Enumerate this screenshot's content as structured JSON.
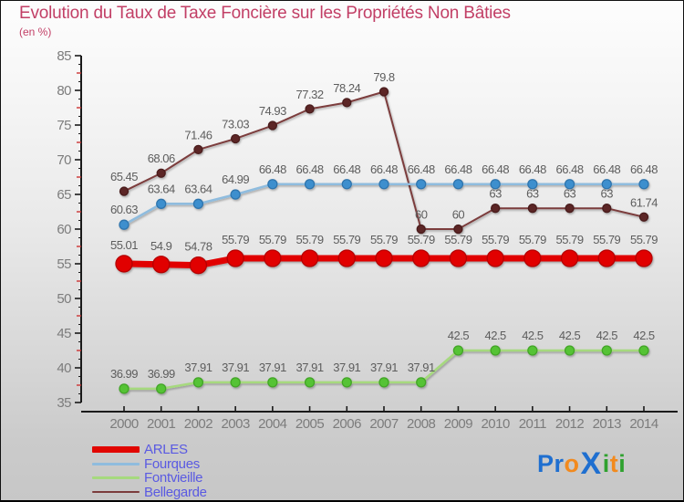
{
  "page": {
    "title": "Evolution du Taux de Taxe Foncière sur les Propriétés Non Bâties",
    "subtitle": "(en %)",
    "title_color": "#c23f66"
  },
  "logo": {
    "text": "Proxiti",
    "letters": [
      {
        "ch": "P",
        "color": "#1f6fd0"
      },
      {
        "ch": "r",
        "color": "#1f6fd0"
      },
      {
        "ch": "o",
        "color": "#f28a1e"
      },
      {
        "ch": "x",
        "color": "#1f6fd0"
      },
      {
        "ch": "i",
        "color": "#2fa12f"
      },
      {
        "ch": "t",
        "color": "#f28a1e"
      },
      {
        "ch": "i",
        "color": "#2fa12f"
      }
    ]
  },
  "chart_data": {
    "type": "line",
    "title": "Evolution du Taux de Taxe Foncière sur les Propriétés Non Bâties",
    "subtitle": "(en %)",
    "x": [
      2000,
      2001,
      2002,
      2003,
      2004,
      2005,
      2006,
      2007,
      2008,
      2009,
      2010,
      2011,
      2012,
      2013,
      2014
    ],
    "xlabel": "",
    "ylabel": "",
    "ylim": [
      35,
      85
    ],
    "ytick_step": 5,
    "grid": false,
    "legend_position": "bottom-left",
    "axis_color": "#1a1a1a",
    "minor_tick_color": "#cc3333",
    "series": [
      {
        "name": "ARLES",
        "color": "#e10600",
        "marker_color": "#e10600",
        "marker_stroke": "#b50500",
        "line_width": 7,
        "marker_radius": 9,
        "values": [
          55.01,
          54.9,
          54.78,
          55.79,
          55.79,
          55.79,
          55.79,
          55.79,
          55.79,
          55.79,
          55.79,
          55.79,
          55.79,
          55.79,
          55.79
        ]
      },
      {
        "name": "Fourques",
        "color": "#8fbcde",
        "marker_color": "#3e8fce",
        "marker_stroke": "#2f74ad",
        "line_width": 2.6,
        "marker_radius": 5,
        "values": [
          60.63,
          63.64,
          63.64,
          64.99,
          66.48,
          66.48,
          66.48,
          66.48,
          66.48,
          66.48,
          66.48,
          66.48,
          66.48,
          66.48,
          66.48
        ]
      },
      {
        "name": "Fontvieille",
        "color": "#a6d97e",
        "marker_color": "#55c335",
        "marker_stroke": "#42a527",
        "line_width": 2.6,
        "marker_radius": 5,
        "values": [
          36.99,
          36.99,
          37.91,
          37.91,
          37.91,
          37.91,
          37.91,
          37.91,
          37.91,
          42.5,
          42.5,
          42.5,
          42.5,
          42.5,
          42.5
        ]
      },
      {
        "name": "Bellegarde",
        "color": "#7b3c3c",
        "marker_color": "#5c2525",
        "marker_stroke": "#4a1d1d",
        "line_width": 2,
        "marker_radius": 4.5,
        "values": [
          65.45,
          68.06,
          71.46,
          73.03,
          74.93,
          77.32,
          78.24,
          79.8,
          60,
          60,
          63,
          63,
          63,
          63,
          61.74
        ]
      }
    ]
  }
}
